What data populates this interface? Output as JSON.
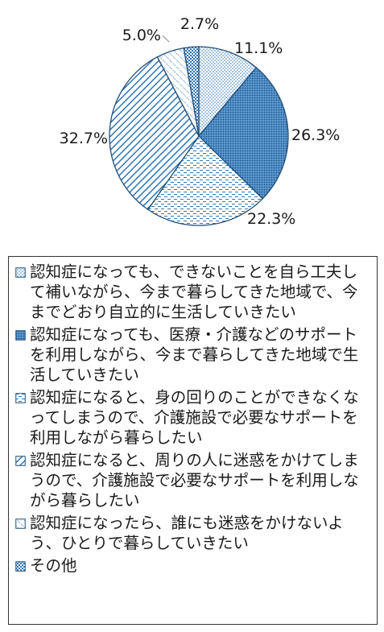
{
  "chart_data": {
    "type": "pie",
    "start_angle_deg": 0,
    "direction": "clockwise",
    "slices": [
      {
        "label": "認知症になっても、できないことを自ら工夫して補いながら、今まで暮らしてきた地域で、今までどおり自立的に生活していきたい",
        "value": 11.1,
        "value_label": "11.1%",
        "pattern": "dots",
        "color": "#2E75B6"
      },
      {
        "label": "認知症になっても、医療・介護などのサポートを利用しながら、今まで暮らしてきた地域で生活していきたい",
        "value": 26.3,
        "value_label": "26.3%",
        "pattern": "dense-dots",
        "color": "#2E75B6"
      },
      {
        "label": "認知症になると、身の回りのことができなくなってしまうので、介護施設で必要なサポートを利用しながら暮らしたい",
        "value": 22.3,
        "value_label": "22.3%",
        "pattern": "dashes",
        "color": "#2E75B6"
      },
      {
        "label": "認知症になると、周りの人に迷惑をかけてしまうので、介護施設で必要なサポートを利用しながら暮らしたい",
        "value": 32.7,
        "value_label": "32.7%",
        "pattern": "diagonal-down",
        "color": "#2E75B6"
      },
      {
        "label": "認知症になったら、誰にも迷惑をかけないよう、ひとりで暮らしていきたい",
        "value": 5.0,
        "value_label": "5.0%",
        "pattern": "diagonal-up",
        "color": "#2E75B6"
      },
      {
        "label": "その他",
        "value": 2.7,
        "value_label": "2.7%",
        "pattern": "checker",
        "color": "#2E75B6"
      }
    ],
    "legend_position": "bottom"
  }
}
